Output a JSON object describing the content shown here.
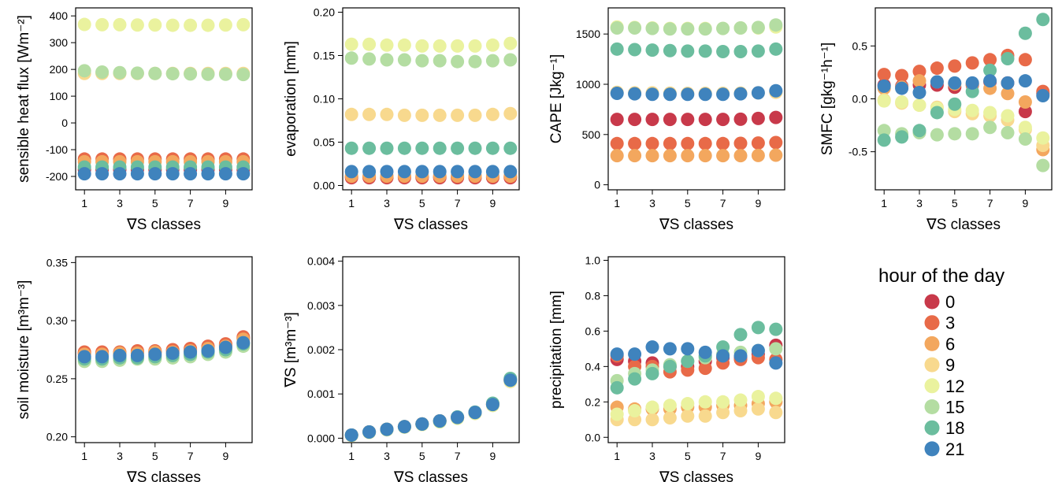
{
  "figure": {
    "legend_title": "hour of the day",
    "legend_items": [
      {
        "label": "0",
        "color": "#c8394a"
      },
      {
        "label": "3",
        "color": "#e86a48"
      },
      {
        "label": "6",
        "color": "#f3a75e"
      },
      {
        "label": "9",
        "color": "#f8d98e"
      },
      {
        "label": "12",
        "color": "#eaf29e"
      },
      {
        "label": "15",
        "color": "#b4dda2"
      },
      {
        "label": "18",
        "color": "#6bbd9e"
      },
      {
        "label": "21",
        "color": "#3f83bd"
      }
    ]
  },
  "chart_data": [
    {
      "id": "sensible-heat-flux",
      "type": "scatter",
      "xlabel": "∇S classes",
      "ylabel": "sensible heat flux [Wm⁻²]",
      "xlim": [
        0.5,
        10.5
      ],
      "ylim": [
        -250,
        430
      ],
      "x_ticks": [
        1,
        3,
        5,
        7,
        9
      ],
      "y_ticks": [
        -200,
        -100,
        0,
        100,
        200,
        300,
        400
      ],
      "x": [
        1,
        2,
        3,
        4,
        5,
        6,
        7,
        8,
        9,
        10
      ],
      "series": [
        {
          "name": "0",
          "values": [
            -175,
            -175,
            -175,
            -175,
            -175,
            -175,
            -175,
            -175,
            -175,
            -175
          ]
        },
        {
          "name": "3",
          "values": [
            -135,
            -135,
            -135,
            -135,
            -135,
            -135,
            -135,
            -135,
            -135,
            -135
          ]
        },
        {
          "name": "6",
          "values": [
            -145,
            -145,
            -145,
            -145,
            -145,
            -145,
            -145,
            -145,
            -145,
            -145
          ]
        },
        {
          "name": "9",
          "values": [
            185,
            185,
            185,
            185,
            185,
            185,
            185,
            185,
            185,
            185
          ]
        },
        {
          "name": "12",
          "values": [
            368,
            367,
            367,
            366,
            366,
            365,
            365,
            365,
            366,
            367
          ]
        },
        {
          "name": "15",
          "values": [
            195,
            190,
            188,
            186,
            185,
            184,
            183,
            182,
            182,
            181
          ]
        },
        {
          "name": "18",
          "values": [
            -165,
            -165,
            -165,
            -165,
            -165,
            -165,
            -165,
            -165,
            -165,
            -165
          ]
        },
        {
          "name": "21",
          "values": [
            -190,
            -190,
            -190,
            -190,
            -190,
            -190,
            -190,
            -190,
            -190,
            -190
          ]
        }
      ]
    },
    {
      "id": "evaporation",
      "type": "scatter",
      "xlabel": "∇S classes",
      "ylabel": "evaporation [mm]",
      "xlim": [
        0.5,
        10.5
      ],
      "ylim": [
        -0.005,
        0.205
      ],
      "x_ticks": [
        1,
        3,
        5,
        7,
        9
      ],
      "y_ticks": [
        0.0,
        0.05,
        0.1,
        0.15,
        0.2
      ],
      "y_tick_labels": [
        "0.00",
        "0.05",
        "0.10",
        "0.15",
        "0.20"
      ],
      "x": [
        1,
        2,
        3,
        4,
        5,
        6,
        7,
        8,
        9,
        10
      ],
      "series": [
        {
          "name": "0",
          "values": [
            0.009,
            0.009,
            0.009,
            0.009,
            0.009,
            0.009,
            0.009,
            0.009,
            0.009,
            0.009
          ]
        },
        {
          "name": "3",
          "values": [
            0.01,
            0.01,
            0.01,
            0.01,
            0.01,
            0.01,
            0.01,
            0.01,
            0.01,
            0.01
          ]
        },
        {
          "name": "6",
          "values": [
            0.011,
            0.011,
            0.011,
            0.011,
            0.011,
            0.011,
            0.011,
            0.011,
            0.011,
            0.011
          ]
        },
        {
          "name": "9",
          "values": [
            0.082,
            0.082,
            0.082,
            0.081,
            0.081,
            0.081,
            0.081,
            0.081,
            0.082,
            0.083
          ]
        },
        {
          "name": "12",
          "values": [
            0.163,
            0.163,
            0.162,
            0.162,
            0.161,
            0.161,
            0.161,
            0.161,
            0.162,
            0.164
          ]
        },
        {
          "name": "15",
          "values": [
            0.147,
            0.146,
            0.145,
            0.145,
            0.144,
            0.144,
            0.143,
            0.143,
            0.144,
            0.145
          ]
        },
        {
          "name": "18",
          "values": [
            0.043,
            0.043,
            0.043,
            0.043,
            0.043,
            0.043,
            0.043,
            0.043,
            0.043,
            0.043
          ]
        },
        {
          "name": "21",
          "values": [
            0.016,
            0.016,
            0.016,
            0.016,
            0.016,
            0.016,
            0.016,
            0.016,
            0.016,
            0.016
          ]
        }
      ]
    },
    {
      "id": "cape",
      "type": "scatter",
      "xlabel": "∇S classes",
      "ylabel": "CAPE [Jkg⁻¹]",
      "xlim": [
        0.5,
        10.5
      ],
      "ylim": [
        -50,
        1760
      ],
      "x_ticks": [
        1,
        3,
        5,
        7,
        9
      ],
      "y_ticks": [
        0,
        500,
        1000,
        1500
      ],
      "x": [
        1,
        2,
        3,
        4,
        5,
        6,
        7,
        8,
        9,
        10
      ],
      "series": [
        {
          "name": "0",
          "values": [
            650,
            650,
            650,
            650,
            650,
            650,
            650,
            652,
            660,
            670
          ]
        },
        {
          "name": "3",
          "values": [
            410,
            410,
            410,
            410,
            410,
            410,
            410,
            412,
            415,
            420
          ]
        },
        {
          "name": "6",
          "values": [
            290,
            290,
            290,
            290,
            290,
            290,
            290,
            290,
            292,
            295
          ]
        },
        {
          "name": "9",
          "values": [
            920,
            915,
            915,
            912,
            910,
            910,
            910,
            912,
            915,
            920
          ]
        },
        {
          "name": "12",
          "values": [
            1570,
            1565,
            1560,
            1555,
            1555,
            1555,
            1555,
            1560,
            1560,
            1570
          ]
        },
        {
          "name": "15",
          "values": [
            1560,
            1560,
            1555,
            1550,
            1550,
            1550,
            1555,
            1560,
            1565,
            1590
          ]
        },
        {
          "name": "18",
          "values": [
            1350,
            1345,
            1340,
            1335,
            1330,
            1330,
            1325,
            1325,
            1330,
            1350
          ]
        },
        {
          "name": "21",
          "values": [
            910,
            905,
            900,
            900,
            900,
            900,
            900,
            905,
            915,
            935
          ]
        }
      ]
    },
    {
      "id": "smfc",
      "type": "scatter",
      "xlabel": "∇S classes",
      "ylabel": "SMFC [gkg⁻¹h⁻¹]",
      "xlim": [
        0.5,
        10.5
      ],
      "ylim": [
        -0.86,
        0.86
      ],
      "x_ticks": [
        1,
        3,
        5,
        7,
        9
      ],
      "y_ticks": [
        -0.5,
        0.0,
        0.5
      ],
      "y_tick_labels": [
        "-0.5",
        "0.0",
        "0.5"
      ],
      "x": [
        1,
        2,
        3,
        4,
        5,
        6,
        7,
        8,
        9,
        10
      ],
      "series": [
        {
          "name": "0",
          "values": [
            0.13,
            0.12,
            0.13,
            0.13,
            0.11,
            0.13,
            0.16,
            0.15,
            -0.12,
            0.05
          ]
        },
        {
          "name": "3",
          "values": [
            0.23,
            0.22,
            0.26,
            0.29,
            0.31,
            0.34,
            0.37,
            0.41,
            0.37,
            0.07
          ]
        },
        {
          "name": "6",
          "values": [
            0.1,
            0.11,
            0.17,
            0.16,
            0.14,
            0.14,
            0.1,
            0.05,
            -0.03,
            -0.48
          ]
        },
        {
          "name": "9",
          "values": [
            -0.01,
            -0.04,
            -0.06,
            -0.08,
            -0.12,
            -0.14,
            -0.16,
            -0.2,
            -0.29,
            -0.44
          ]
        },
        {
          "name": "12",
          "values": [
            -0.02,
            -0.03,
            -0.06,
            -0.09,
            -0.1,
            -0.11,
            -0.13,
            -0.16,
            -0.27,
            -0.37
          ]
        },
        {
          "name": "15",
          "values": [
            -0.3,
            -0.33,
            -0.32,
            -0.34,
            -0.33,
            -0.33,
            -0.27,
            -0.32,
            -0.38,
            -0.63
          ]
        },
        {
          "name": "18",
          "values": [
            -0.39,
            -0.36,
            -0.3,
            -0.13,
            -0.05,
            0.07,
            0.27,
            0.38,
            0.62,
            0.75
          ]
        },
        {
          "name": "21",
          "values": [
            0.12,
            0.1,
            0.06,
            0.16,
            0.15,
            0.15,
            0.17,
            0.15,
            0.17,
            0.03
          ]
        }
      ]
    },
    {
      "id": "soil-moisture",
      "type": "scatter",
      "xlabel": "∇S classes",
      "ylabel": "soil moisture [m³m⁻³]",
      "xlim": [
        0.5,
        10.5
      ],
      "ylim": [
        0.195,
        0.355
      ],
      "x_ticks": [
        1,
        3,
        5,
        7,
        9
      ],
      "y_ticks": [
        0.2,
        0.25,
        0.3,
        0.35
      ],
      "y_tick_labels": [
        "0.20",
        "0.25",
        "0.30",
        "0.35"
      ],
      "x": [
        1,
        2,
        3,
        4,
        5,
        6,
        7,
        8,
        9,
        10
      ],
      "series": [
        {
          "name": "0",
          "values": [
            0.272,
            0.272,
            0.272,
            0.273,
            0.273,
            0.274,
            0.275,
            0.277,
            0.279,
            0.285
          ]
        },
        {
          "name": "3",
          "values": [
            0.273,
            0.273,
            0.273,
            0.274,
            0.274,
            0.275,
            0.276,
            0.278,
            0.28,
            0.286
          ]
        },
        {
          "name": "6",
          "values": [
            0.271,
            0.271,
            0.272,
            0.272,
            0.273,
            0.273,
            0.274,
            0.276,
            0.278,
            0.284
          ]
        },
        {
          "name": "9",
          "values": [
            0.268,
            0.268,
            0.269,
            0.269,
            0.27,
            0.271,
            0.272,
            0.274,
            0.276,
            0.281
          ]
        },
        {
          "name": "12",
          "values": [
            0.265,
            0.266,
            0.266,
            0.267,
            0.268,
            0.268,
            0.27,
            0.272,
            0.274,
            0.279
          ]
        },
        {
          "name": "15",
          "values": [
            0.265,
            0.265,
            0.266,
            0.267,
            0.267,
            0.268,
            0.269,
            0.271,
            0.273,
            0.278
          ]
        },
        {
          "name": "18",
          "values": [
            0.267,
            0.267,
            0.268,
            0.268,
            0.269,
            0.27,
            0.271,
            0.273,
            0.275,
            0.28
          ]
        },
        {
          "name": "21",
          "values": [
            0.269,
            0.269,
            0.27,
            0.27,
            0.271,
            0.272,
            0.273,
            0.274,
            0.277,
            0.281
          ]
        }
      ]
    },
    {
      "id": "delta-s",
      "type": "scatter",
      "xlabel": "∇S classes",
      "ylabel": "∇S [m³m⁻³]",
      "xlim": [
        0.5,
        10.5
      ],
      "ylim": [
        -0.0001,
        0.0041
      ],
      "x_ticks": [
        1,
        3,
        5,
        7,
        9
      ],
      "y_ticks": [
        0.0,
        0.001,
        0.002,
        0.003,
        0.004
      ],
      "y_tick_labels": [
        "0.000",
        "0.001",
        "0.002",
        "0.003",
        "0.004"
      ],
      "x": [
        1,
        2,
        3,
        4,
        5,
        6,
        7,
        8,
        9,
        10
      ],
      "series": [
        {
          "name": "0",
          "values": [
            7e-05,
            0.00014,
            0.0002,
            0.00026,
            0.00032,
            0.00039,
            0.00047,
            0.00058,
            0.00077,
            0.00132
          ]
        },
        {
          "name": "3",
          "values": [
            7e-05,
            0.00014,
            0.0002,
            0.00026,
            0.00032,
            0.00039,
            0.00047,
            0.00058,
            0.00077,
            0.00132
          ]
        },
        {
          "name": "6",
          "values": [
            7e-05,
            0.00014,
            0.0002,
            0.00026,
            0.00032,
            0.00039,
            0.00047,
            0.00058,
            0.00077,
            0.00132
          ]
        },
        {
          "name": "9",
          "values": [
            6e-05,
            0.00013,
            0.00019,
            0.00025,
            0.00031,
            0.00037,
            0.00045,
            0.00056,
            0.00074,
            0.00128
          ]
        },
        {
          "name": "12",
          "values": [
            6e-05,
            0.00013,
            0.00019,
            0.00025,
            0.00031,
            0.00037,
            0.00045,
            0.00056,
            0.00074,
            0.00129
          ]
        },
        {
          "name": "15",
          "values": [
            7e-05,
            0.00014,
            0.0002,
            0.00026,
            0.00032,
            0.00038,
            0.00047,
            0.00058,
            0.00078,
            0.00133
          ]
        },
        {
          "name": "18",
          "values": [
            7e-05,
            0.00014,
            0.0002,
            0.00026,
            0.00032,
            0.00039,
            0.00048,
            0.00059,
            0.00079,
            0.00135
          ]
        },
        {
          "name": "21",
          "values": [
            7e-05,
            0.00014,
            0.0002,
            0.00026,
            0.00032,
            0.00039,
            0.00047,
            0.00058,
            0.00076,
            0.00131
          ]
        }
      ]
    },
    {
      "id": "precipitation",
      "type": "scatter",
      "xlabel": "∇S classes",
      "ylabel": "precipitation [mm]",
      "xlim": [
        0.5,
        10.5
      ],
      "ylim": [
        -0.03,
        1.02
      ],
      "x_ticks": [
        1,
        3,
        5,
        7,
        9
      ],
      "y_ticks": [
        0.0,
        0.2,
        0.4,
        0.6,
        0.8,
        1.0
      ],
      "y_tick_labels": [
        "0.0",
        "0.2",
        "0.4",
        "0.6",
        "0.8",
        "1.0"
      ],
      "x": [
        1,
        2,
        3,
        4,
        5,
        6,
        7,
        8,
        9,
        10
      ],
      "series": [
        {
          "name": "0",
          "values": [
            0.44,
            0.43,
            0.42,
            0.4,
            0.4,
            0.43,
            0.45,
            0.45,
            0.47,
            0.52
          ]
        },
        {
          "name": "3",
          "values": [
            0.46,
            0.4,
            0.4,
            0.37,
            0.38,
            0.39,
            0.42,
            0.44,
            0.45,
            0.44
          ]
        },
        {
          "name": "6",
          "values": [
            0.17,
            0.16,
            0.16,
            0.16,
            0.17,
            0.17,
            0.18,
            0.18,
            0.19,
            0.2
          ]
        },
        {
          "name": "9",
          "values": [
            0.1,
            0.1,
            0.1,
            0.11,
            0.12,
            0.12,
            0.14,
            0.15,
            0.16,
            0.14
          ]
        },
        {
          "name": "12",
          "values": [
            0.13,
            0.15,
            0.17,
            0.18,
            0.19,
            0.2,
            0.2,
            0.21,
            0.23,
            0.22
          ]
        },
        {
          "name": "15",
          "values": [
            0.32,
            0.36,
            0.38,
            0.41,
            0.43,
            0.45,
            0.47,
            0.48,
            0.49,
            0.5
          ]
        },
        {
          "name": "18",
          "values": [
            0.28,
            0.33,
            0.36,
            0.4,
            0.43,
            0.46,
            0.51,
            0.58,
            0.62,
            0.61
          ]
        },
        {
          "name": "21",
          "values": [
            0.47,
            0.47,
            0.51,
            0.5,
            0.5,
            0.48,
            0.46,
            0.46,
            0.49,
            0.42
          ]
        }
      ]
    }
  ]
}
